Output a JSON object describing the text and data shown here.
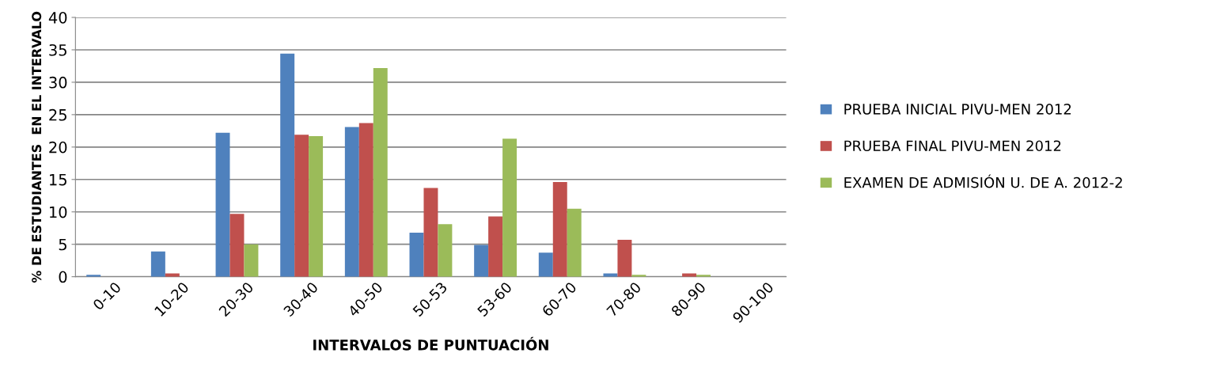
{
  "chart_data": {
    "type": "bar",
    "xlabel": "INTERVALOS DE PUNTUACIÓN",
    "ylabel": "% DE ESTUDIANTES  EN EL INTERVALO",
    "categories": [
      "0-10",
      "10-20",
      "20-30",
      "30-40",
      "40-50",
      "50-53",
      "53-60",
      "60-70",
      "70-80",
      "80-90",
      "90-100"
    ],
    "series": [
      {
        "name": "PRUEBA INICIAL PIVU-MEN 2012",
        "color": "#4f81bd",
        "values": [
          0.3,
          3.9,
          22.2,
          34.4,
          23.1,
          6.8,
          4.9,
          3.7,
          0.5,
          0,
          0
        ]
      },
      {
        "name": "PRUEBA FINAL PIVU-MEN 2012",
        "color": "#c0504d",
        "values": [
          0,
          0.5,
          9.7,
          21.9,
          23.7,
          13.7,
          9.3,
          14.6,
          5.7,
          0.5,
          0
        ]
      },
      {
        "name": "EXAMEN DE ADMISIÓN U. DE A. 2012-2",
        "color": "#9bbb59",
        "values": [
          0,
          0,
          5.0,
          21.7,
          32.2,
          8.1,
          21.3,
          10.5,
          0.3,
          0.3,
          0
        ]
      }
    ],
    "ylim": [
      0,
      40
    ],
    "yticks": [
      0,
      5,
      10,
      15,
      20,
      25,
      30,
      35,
      40
    ],
    "grid": "y",
    "legend": "right"
  }
}
